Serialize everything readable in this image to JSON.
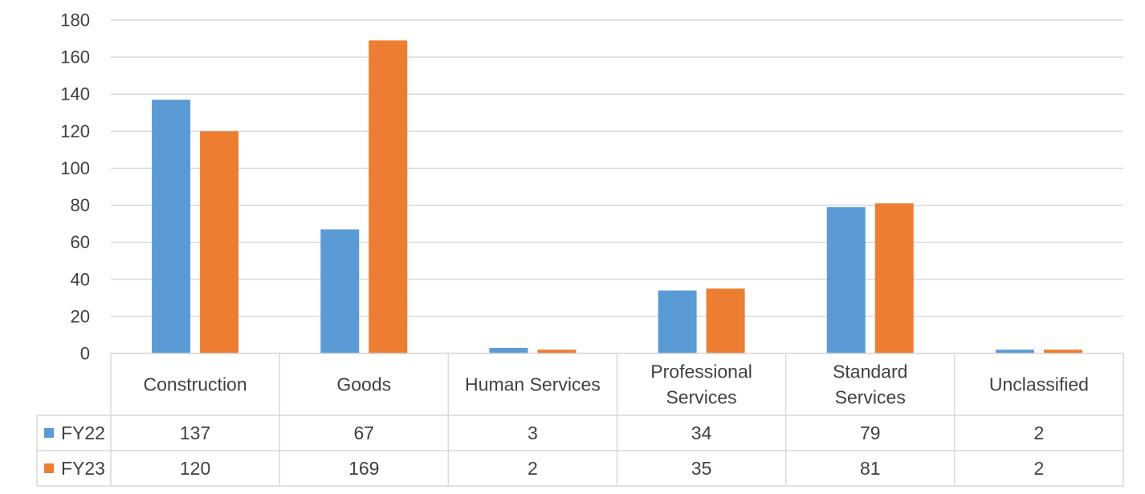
{
  "chart_data": {
    "type": "bar",
    "title": "",
    "xlabel": "",
    "ylabel": "",
    "ylim": [
      0,
      180
    ],
    "yticks": [
      0,
      20,
      40,
      60,
      80,
      100,
      120,
      140,
      160,
      180
    ],
    "grid": true,
    "legend": "data-table-left",
    "categories": [
      [
        "Construction"
      ],
      [
        "Goods"
      ],
      [
        "Human Services"
      ],
      [
        "Professional",
        "Services"
      ],
      [
        "Standard",
        "Services"
      ],
      [
        "Unclassified"
      ]
    ],
    "series": [
      {
        "name": "FY22",
        "color": "#5b9bd5",
        "values": [
          137,
          67,
          3,
          34,
          79,
          2
        ]
      },
      {
        "name": "FY23",
        "color": "#ed7d31",
        "values": [
          120,
          169,
          2,
          35,
          81,
          2
        ]
      }
    ],
    "colors": {
      "grid": "#d9d9d9",
      "text": "#404040",
      "table_border": "#d9d9d9"
    }
  }
}
